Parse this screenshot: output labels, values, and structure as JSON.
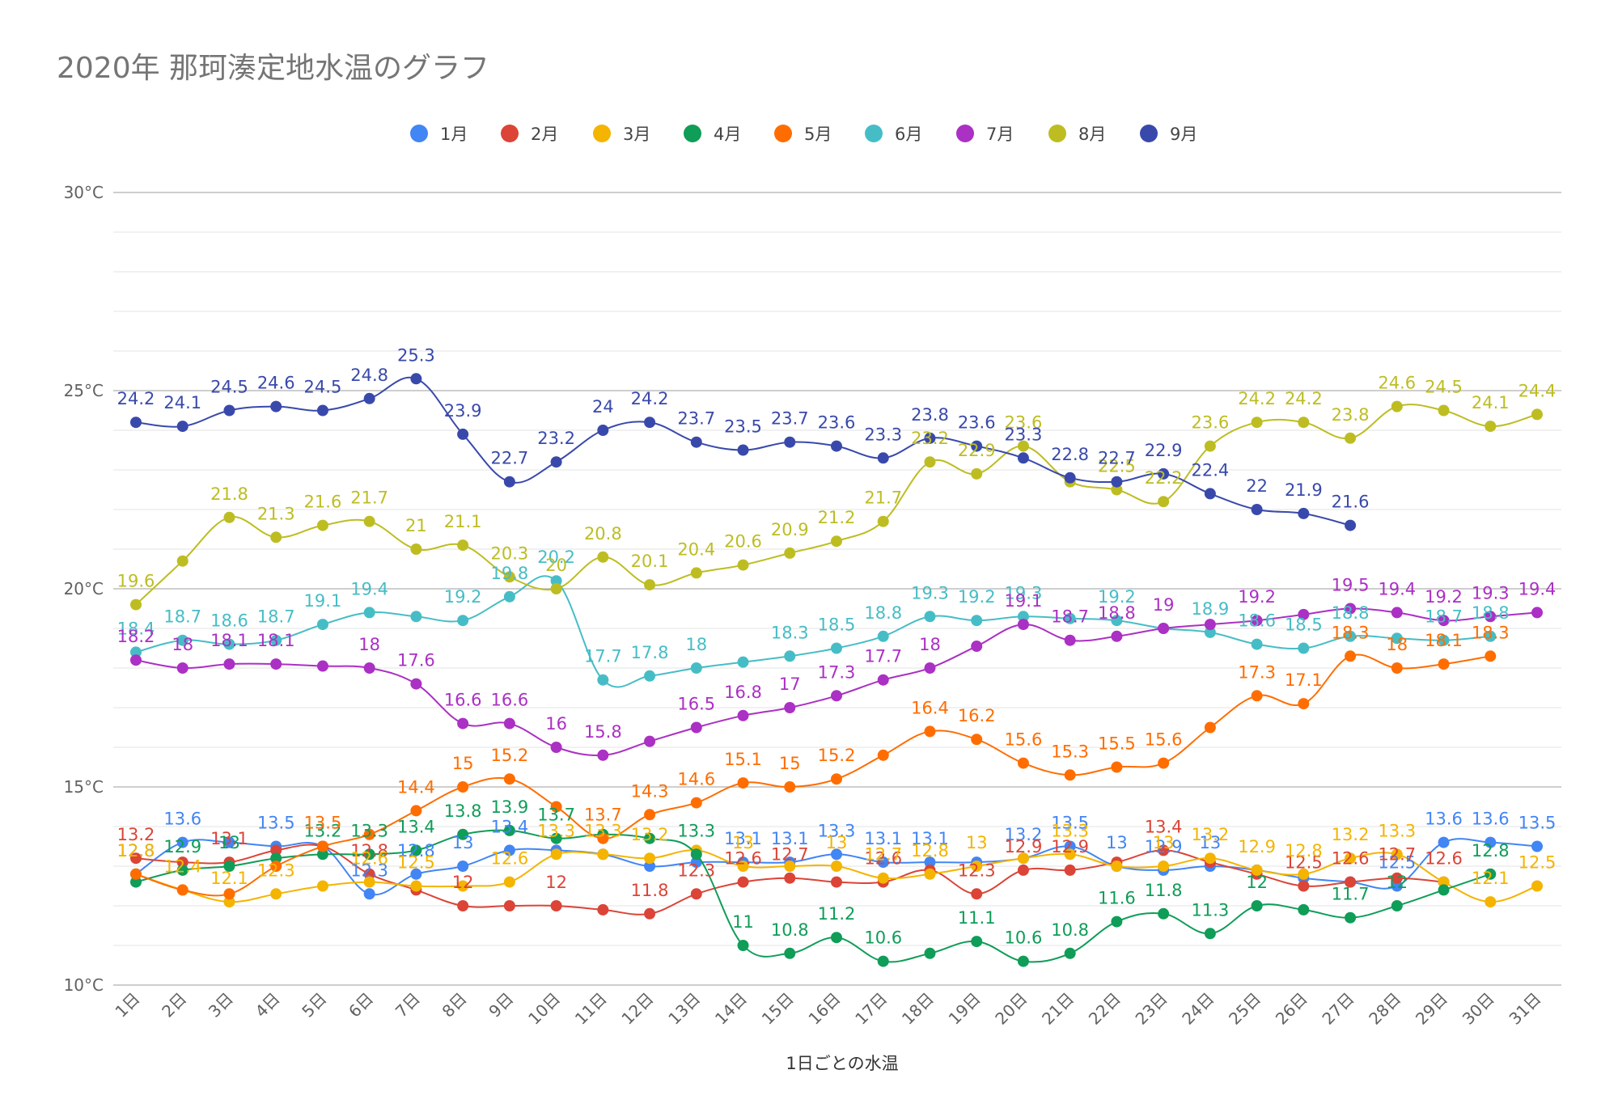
{
  "chart_data": {
    "type": "line",
    "title": "2020年 那珂湊定地水温のグラフ",
    "xlabel": "1日ごとの水温",
    "ylabel": "",
    "ylim": [
      10,
      30
    ],
    "y_ticks": [
      "10°C",
      "15°C",
      "20°C",
      "25°C",
      "30°C"
    ],
    "y_tick_values": [
      10,
      15,
      20,
      25,
      30
    ],
    "categories": [
      "1日",
      "2日",
      "3日",
      "4日",
      "5日",
      "6日",
      "7日",
      "8日",
      "9日",
      "10日",
      "11日",
      "12日",
      "13日",
      "14日",
      "15日",
      "16日",
      "17日",
      "18日",
      "19日",
      "20日",
      "21日",
      "22日",
      "23日",
      "24日",
      "25日",
      "26日",
      "27日",
      "28日",
      "29日",
      "30日",
      "31日"
    ],
    "grid": true,
    "legend_position": "top",
    "series": [
      {
        "name": "1月",
        "color": "#4285f4",
        "values": [
          12.8,
          13.6,
          13.6,
          13.5,
          13.5,
          12.3,
          12.8,
          13.0,
          13.4,
          13.4,
          13.3,
          13.0,
          13.1,
          13.1,
          13.1,
          13.3,
          13.1,
          13.1,
          13.1,
          13.2,
          13.5,
          13.0,
          12.9,
          13.0,
          12.9,
          12.7,
          12.6,
          12.5,
          13.6,
          13.6,
          13.5
        ]
      },
      {
        "name": "2月",
        "color": "#db4437",
        "values": [
          13.2,
          13.1,
          13.1,
          13.4,
          13.5,
          12.8,
          12.4,
          12.0,
          12.0,
          12.0,
          11.9,
          11.8,
          12.3,
          12.6,
          12.7,
          12.6,
          12.6,
          12.9,
          12.3,
          12.9,
          12.9,
          13.1,
          13.4,
          13.1,
          12.8,
          12.5,
          12.6,
          12.7,
          12.6,
          null,
          null
        ]
      },
      {
        "name": "3月",
        "color": "#f4b400",
        "values": [
          12.8,
          12.4,
          12.1,
          12.3,
          12.5,
          12.6,
          12.5,
          12.5,
          12.6,
          13.3,
          13.3,
          13.2,
          13.4,
          13.0,
          13.0,
          13.0,
          12.7,
          12.8,
          13.0,
          13.2,
          13.3,
          13.0,
          13.0,
          13.2,
          12.9,
          12.8,
          13.2,
          13.3,
          12.6,
          12.1,
          12.5
        ]
      },
      {
        "name": "4月",
        "color": "#0f9d58",
        "values": [
          12.6,
          12.9,
          13.0,
          13.2,
          13.3,
          13.3,
          13.4,
          13.8,
          13.9,
          13.7,
          13.8,
          13.7,
          13.3,
          11.0,
          10.8,
          11.2,
          10.6,
          10.8,
          11.1,
          10.6,
          10.8,
          11.6,
          11.8,
          11.3,
          12.0,
          11.9,
          11.7,
          12.0,
          12.4,
          12.8,
          null
        ]
      },
      {
        "name": "5月",
        "color": "#ff6d00",
        "values": [
          12.8,
          12.4,
          12.3,
          13.0,
          13.5,
          13.8,
          14.4,
          15.0,
          15.2,
          14.5,
          13.7,
          14.3,
          14.6,
          15.1,
          15.0,
          15.2,
          15.8,
          16.4,
          16.2,
          15.6,
          15.3,
          15.5,
          15.6,
          16.5,
          17.3,
          17.1,
          18.3,
          18.0,
          18.1,
          18.3,
          null
        ]
      },
      {
        "name": "6月",
        "color": "#46bdc6",
        "values": [
          18.4,
          18.7,
          18.6,
          18.7,
          19.1,
          19.4,
          19.3,
          19.2,
          19.8,
          20.2,
          17.7,
          17.8,
          18.0,
          18.15,
          18.3,
          18.5,
          18.8,
          19.3,
          19.2,
          19.3,
          19.25,
          19.2,
          19.0,
          18.9,
          18.6,
          18.5,
          18.8,
          18.75,
          18.7,
          18.8,
          null
        ]
      },
      {
        "name": "7月",
        "color": "#ab30c4",
        "values": [
          18.2,
          18.0,
          18.1,
          18.1,
          18.05,
          18.0,
          17.6,
          16.6,
          16.6,
          16.0,
          15.8,
          16.15,
          16.5,
          16.8,
          17.0,
          17.3,
          17.7,
          18.0,
          18.55,
          19.1,
          18.7,
          18.8,
          19.0,
          19.1,
          19.2,
          19.35,
          19.5,
          19.4,
          19.2,
          19.3,
          19.4
        ]
      },
      {
        "name": "8月",
        "color": "#bdbd22",
        "values": [
          19.6,
          20.7,
          21.8,
          21.3,
          21.6,
          21.7,
          21.0,
          21.1,
          20.3,
          20.0,
          20.8,
          20.1,
          20.4,
          20.6,
          20.9,
          21.2,
          21.7,
          23.2,
          22.9,
          23.6,
          22.7,
          22.5,
          22.2,
          23.6,
          24.2,
          24.2,
          23.8,
          24.6,
          24.5,
          24.1,
          24.4
        ]
      },
      {
        "name": "9月",
        "color": "#3949ab",
        "values": [
          24.2,
          24.1,
          24.5,
          24.6,
          24.5,
          24.8,
          25.3,
          23.9,
          22.7,
          23.2,
          24.0,
          24.2,
          23.7,
          23.5,
          23.7,
          23.6,
          23.3,
          23.8,
          23.6,
          23.3,
          22.8,
          22.7,
          22.9,
          22.4,
          22.0,
          21.9,
          21.6,
          null,
          null,
          null,
          null
        ]
      }
    ],
    "data_labels": [
      {
        "series": 0,
        "labels": [
          "12.8",
          "13.6",
          "",
          "13.5",
          "",
          "12.3",
          "12.8",
          "13",
          "13.4",
          "",
          "",
          "",
          "",
          "13.1",
          "13.1",
          "13.3",
          "13.1",
          "13.1",
          "",
          "13.2",
          "13.5",
          "13",
          "12.9",
          "13",
          "",
          "",
          "",
          "12.5",
          "13.6",
          "13.6",
          "13.5"
        ]
      },
      {
        "series": 1,
        "labels": [
          "13.2",
          "",
          "13.1",
          "",
          "",
          "12.8",
          "",
          "12",
          "",
          "12",
          "",
          "11.8",
          "12.3",
          "12.6",
          "12.7",
          "",
          "12.6",
          "",
          "12.3",
          "12.9",
          "12.9",
          "",
          "13.4",
          "",
          "",
          "12.5",
          "12.6",
          "12.7",
          "12.6",
          "",
          ""
        ]
      },
      {
        "series": 2,
        "labels": [
          "12.8",
          "12.4",
          "12.1",
          "12.3",
          "",
          "12.6",
          "12.5",
          "",
          "12.6",
          "13.3",
          "13.3",
          "13.2",
          "",
          "13",
          "",
          "13",
          "12.7",
          "12.8",
          "13",
          "",
          "13.3",
          "",
          "13",
          "13.2",
          "12.9",
          "12.8",
          "13.2",
          "13.3",
          "",
          "12.1",
          "12.5"
        ]
      },
      {
        "series": 3,
        "labels": [
          "",
          "12.9",
          "13",
          "",
          "13.2",
          "13.3",
          "13.4",
          "13.8",
          "13.9",
          "13.7",
          "",
          "",
          "13.3",
          "11",
          "10.8",
          "11.2",
          "10.6",
          "",
          "11.1",
          "10.6",
          "10.8",
          "11.6",
          "11.8",
          "11.3",
          "12",
          "",
          "11.7",
          "12",
          "",
          "12.8",
          ""
        ]
      },
      {
        "series": 4,
        "labels": [
          "",
          "",
          "",
          "",
          "13.5",
          "",
          "14.4",
          "15",
          "15.2",
          "",
          "13.7",
          "14.3",
          "14.6",
          "15.1",
          "15",
          "15.2",
          "",
          "16.4",
          "16.2",
          "15.6",
          "15.3",
          "15.5",
          "15.6",
          "",
          "17.3",
          "17.1",
          "18.3",
          "18",
          "18.1",
          "18.3",
          ""
        ]
      },
      {
        "series": 5,
        "labels": [
          "18.4",
          "18.7",
          "18.6",
          "18.7",
          "19.1",
          "19.4",
          "",
          "19.2",
          "19.8",
          "20.2",
          "17.7",
          "17.8",
          "18",
          "",
          "18.3",
          "18.5",
          "18.8",
          "19.3",
          "19.2",
          "19.3",
          "",
          "19.2",
          "",
          "18.9",
          "18.6",
          "18.5",
          "18.8",
          "",
          "18.7",
          "18.8",
          ""
        ]
      },
      {
        "series": 6,
        "labels": [
          "18.2",
          "18",
          "18.1",
          "18.1",
          "",
          "18",
          "17.6",
          "16.6",
          "16.6",
          "16",
          "15.8",
          "",
          "16.5",
          "16.8",
          "17",
          "17.3",
          "17.7",
          "18",
          "",
          "19.1",
          "18.7",
          "18.8",
          "19",
          "",
          "19.2",
          "",
          "19.5",
          "19.4",
          "19.2",
          "19.3",
          "19.4"
        ]
      },
      {
        "series": 7,
        "labels": [
          "19.6",
          "",
          "21.8",
          "21.3",
          "21.6",
          "21.7",
          "21",
          "21.1",
          "20.3",
          "20",
          "20.8",
          "20.1",
          "20.4",
          "20.6",
          "20.9",
          "21.2",
          "21.7",
          "23.2",
          "22.9",
          "23.6",
          "",
          "22.5",
          "22.2",
          "23.6",
          "24.2",
          "24.2",
          "23.8",
          "24.6",
          "24.5",
          "24.1",
          "24.4"
        ]
      },
      {
        "series": 8,
        "labels": [
          "24.2",
          "24.1",
          "24.5",
          "24.6",
          "24.5",
          "24.8",
          "25.3",
          "23.9",
          "22.7",
          "23.2",
          "24",
          "24.2",
          "23.7",
          "23.5",
          "23.7",
          "23.6",
          "23.3",
          "23.8",
          "23.6",
          "23.3",
          "22.8",
          "22.7",
          "22.9",
          "22.4",
          "22",
          "21.9",
          "21.6",
          "",
          "",
          "",
          ""
        ]
      }
    ]
  }
}
